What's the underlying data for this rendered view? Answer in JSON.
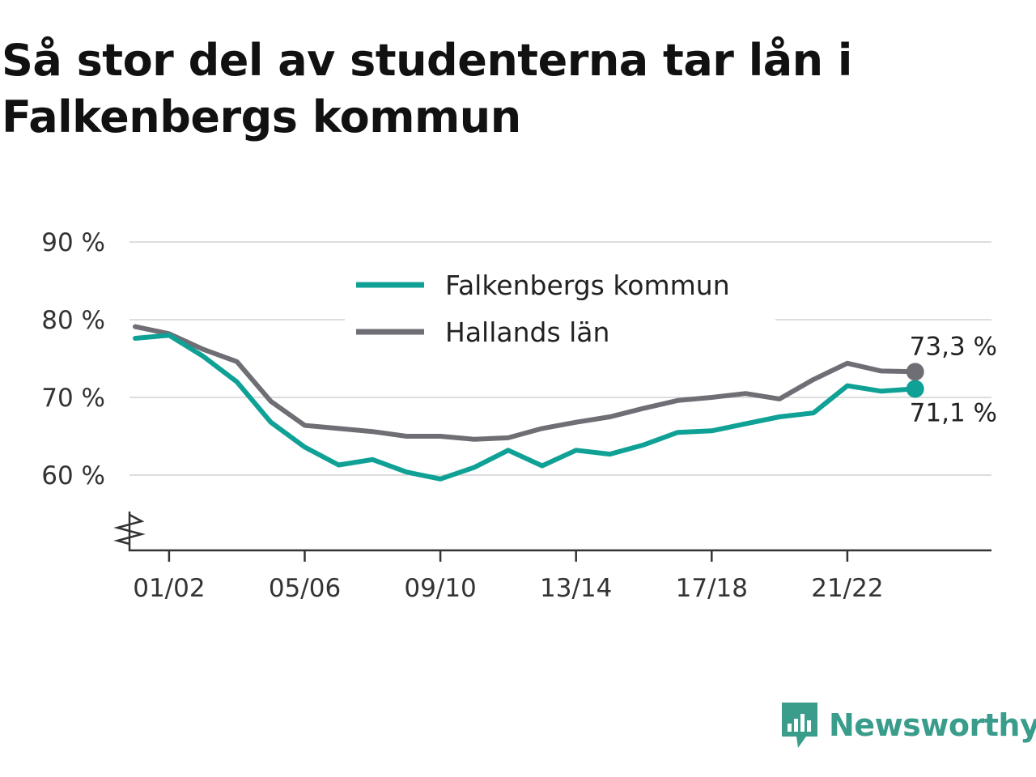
{
  "title": "Så stor del av studenterna tar lån i Falkenbergs kommun",
  "brand": {
    "name": "Newsworthy",
    "icon": "newsworthy-logo-icon",
    "color": "#3a9d8c"
  },
  "chart_data": {
    "type": "line",
    "title": "Så stor del av studenterna tar lån i Falkenbergs kommun",
    "x": [
      "00/01",
      "01/02",
      "02/03",
      "03/04",
      "04/05",
      "05/06",
      "06/07",
      "07/08",
      "08/09",
      "09/10",
      "10/11",
      "11/12",
      "12/13",
      "13/14",
      "14/15",
      "15/16",
      "16/17",
      "17/18",
      "18/19",
      "19/20",
      "20/21",
      "21/22",
      "22/23",
      "23/24"
    ],
    "x_tick_labels": [
      "01/02",
      "05/06",
      "09/10",
      "13/14",
      "17/18",
      "21/22"
    ],
    "y_tick_labels": [
      "60 %",
      "70 %",
      "80 %",
      "90 %"
    ],
    "y_ticks": [
      60,
      70,
      80,
      90
    ],
    "ylim": [
      50.5,
      90
    ],
    "y_axis_break": true,
    "grid": true,
    "legend_position": "top-center",
    "series": [
      {
        "name": "Falkenbergs kommun",
        "color": "#0fa195",
        "values": [
          77.6,
          78.0,
          75.3,
          72.0,
          66.8,
          63.6,
          61.3,
          62.0,
          60.4,
          59.5,
          61.0,
          63.2,
          61.2,
          63.2,
          62.7,
          63.9,
          65.5,
          65.7,
          66.6,
          67.5,
          68.0,
          71.5,
          70.8,
          71.1
        ],
        "end_label": "71,1 %"
      },
      {
        "name": "Hallands län",
        "color": "#6f6e74",
        "values": [
          79.1,
          78.2,
          76.2,
          74.6,
          69.5,
          66.4,
          66.0,
          65.6,
          65.0,
          65.0,
          64.6,
          64.8,
          66.0,
          66.8,
          67.5,
          68.6,
          69.6,
          70.0,
          70.5,
          69.8,
          72.3,
          74.4,
          73.4,
          73.3
        ],
        "end_label": "73,3 %"
      }
    ]
  }
}
